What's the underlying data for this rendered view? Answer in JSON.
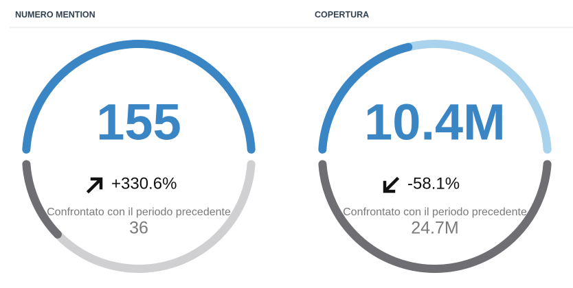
{
  "widgets": [
    {
      "title": "NUMERO MENTION",
      "current": 155,
      "change": "+330.6%",
      "caption": "Confrontato con il periodo precedente",
      "previous": 36
    },
    {
      "title": "COPERTURA",
      "current": {
        "value": 10400000,
        "label": "10.4M"
      },
      "change": "-58.1%",
      "caption": "Confrontato con il periodo precedente",
      "previous": {
        "value": 24700000,
        "label": "24.7M"
      }
    }
  ]
}
